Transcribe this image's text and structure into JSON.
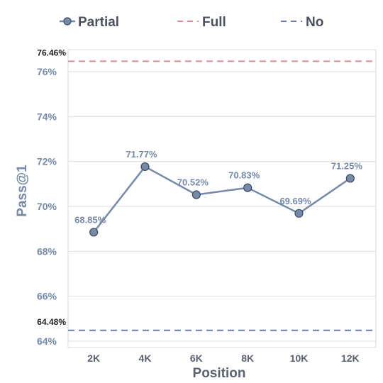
{
  "chart_data": {
    "type": "line",
    "xlabel": "Position",
    "ylabel": "Pass@1",
    "categories": [
      "2K",
      "4K",
      "6K",
      "8K",
      "10K",
      "12K"
    ],
    "ylim": [
      64,
      77
    ],
    "yticks": [
      "64%",
      "66%",
      "68%",
      "70%",
      "72%",
      "74%",
      "76%"
    ],
    "grid": "horizontal",
    "legend_position": "top",
    "series": [
      {
        "name": "Partial",
        "style": "solid line with circle markers",
        "color": "#7589a8",
        "values": [
          68.85,
          71.77,
          70.52,
          70.83,
          69.69,
          71.25
        ],
        "labels": [
          "68.85%",
          "71.77%",
          "70.52%",
          "70.83%",
          "69.69%",
          "71.25%"
        ]
      },
      {
        "name": "Full",
        "style": "dashed horizontal line",
        "color": "#e0899a",
        "value": 76.46,
        "label": "76.46%"
      },
      {
        "name": "No",
        "style": "dashed horizontal line",
        "color": "#6b7fa8",
        "value": 64.48,
        "label": "64.48%"
      }
    ]
  }
}
